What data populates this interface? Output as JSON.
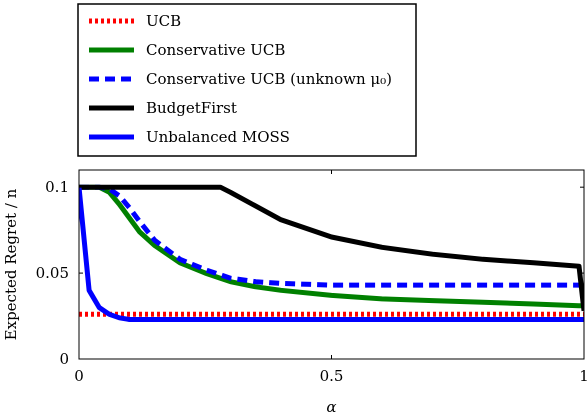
{
  "chart_data": {
    "type": "line",
    "title": "",
    "xlabel": "α",
    "ylabel": "Expected Regret / n",
    "xlim": [
      0,
      1
    ],
    "ylim": [
      0,
      0.11
    ],
    "x_ticks": [
      "0",
      "0.5",
      "1"
    ],
    "y_ticks": [
      "0",
      "0.05",
      "0.1"
    ],
    "grid": false,
    "legend_position": "top-left, above plot",
    "x": [
      0,
      0.02,
      0.04,
      0.06,
      0.08,
      0.1,
      0.12,
      0.15,
      0.2,
      0.25,
      0.28,
      0.3,
      0.35,
      0.4,
      0.5,
      0.6,
      0.7,
      0.8,
      0.9,
      0.99,
      1.0
    ],
    "series": [
      {
        "name": "UCB",
        "color": "#ff0000",
        "style": "dotted",
        "values": [
          0.026,
          0.026,
          0.026,
          0.026,
          0.026,
          0.026,
          0.026,
          0.026,
          0.026,
          0.026,
          0.026,
          0.026,
          0.026,
          0.026,
          0.026,
          0.026,
          0.026,
          0.026,
          0.026,
          0.026,
          0.026
        ]
      },
      {
        "name": "Conservative UCB",
        "color": "#008000",
        "style": "solid",
        "values": [
          0.1,
          0.1,
          0.1,
          0.097,
          0.09,
          0.082,
          0.074,
          0.066,
          0.056,
          0.05,
          0.047,
          0.045,
          0.042,
          0.04,
          0.037,
          0.035,
          0.034,
          0.033,
          0.032,
          0.031,
          0.031
        ]
      },
      {
        "name": "Conservative UCB (unknown μ₀)",
        "color": "#0000ff",
        "style": "dashed",
        "values": [
          0.1,
          0.1,
          0.1,
          0.099,
          0.095,
          0.088,
          0.08,
          0.069,
          0.058,
          0.052,
          0.049,
          0.047,
          0.045,
          0.044,
          0.043,
          0.043,
          0.043,
          0.043,
          0.043,
          0.043,
          0.043
        ]
      },
      {
        "name": "BudgetFirst",
        "color": "#000000",
        "style": "solid",
        "values": [
          0.1,
          0.1,
          0.1,
          0.1,
          0.1,
          0.1,
          0.1,
          0.1,
          0.1,
          0.1,
          0.1,
          0.097,
          0.089,
          0.081,
          0.071,
          0.065,
          0.061,
          0.058,
          0.056,
          0.054,
          0.028
        ]
      },
      {
        "name": "Unbalanced MOSS",
        "color": "#0000ff",
        "style": "solid",
        "values": [
          0.1,
          0.04,
          0.03,
          0.026,
          0.024,
          0.023,
          0.023,
          0.023,
          0.023,
          0.023,
          0.023,
          0.023,
          0.023,
          0.023,
          0.023,
          0.023,
          0.023,
          0.023,
          0.023,
          0.023,
          0.023
        ]
      }
    ]
  }
}
